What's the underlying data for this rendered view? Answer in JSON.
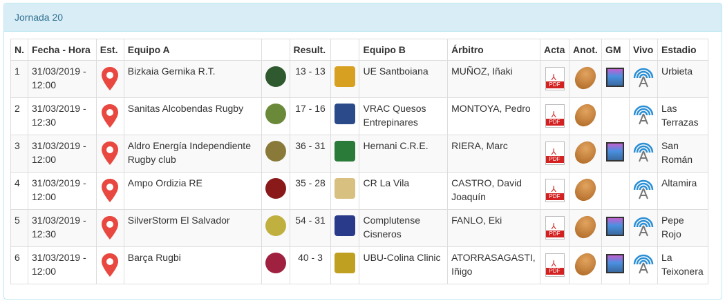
{
  "panel": {
    "title": "Jornada 20"
  },
  "headers": [
    "N.",
    "Fecha - Hora",
    "Est.",
    "Equipo A",
    "",
    "Result.",
    "",
    "Equipo B",
    "Árbitro",
    "Acta",
    "Anot.",
    "GM",
    "Vivo",
    "Estadio"
  ],
  "icons": {
    "pdf_label": "PDF",
    "estadio": "map-pin-icon",
    "acta": "pdf-icon",
    "anot": "rugby-ball-icon",
    "gm": "video-gallery-icon",
    "vivo": "live-broadcast-icon"
  },
  "colors": {
    "heading_bg": "#d9edf7",
    "heading_text": "#31708f",
    "pin": "#e8483f"
  },
  "rows": [
    {
      "n": "1",
      "fecha": "31/03/2019 - 12:00",
      "equipo_a": "Bizkaia Gernika R.T.",
      "result": "13 - 13",
      "equipo_b": "UE Santboiana",
      "arbitro": "MUÑOZ, Iñaki",
      "gm": true,
      "estadio": "Urbieta",
      "logo_a": "#2f5a2f",
      "logo_b": "#d8a020"
    },
    {
      "n": "2",
      "fecha": "31/03/2019 - 12:30",
      "equipo_a": "Sanitas Alcobendas Rugby",
      "result": "17 - 16",
      "equipo_b": "VRAC Quesos Entrepinares",
      "arbitro": "MONTOYA, Pedro",
      "gm": false,
      "estadio": "Las Terrazas",
      "logo_a": "#6a8a3a",
      "logo_b": "#2a4a8a"
    },
    {
      "n": "3",
      "fecha": "31/03/2019 - 12:00",
      "equipo_a": "Aldro Energía Independiente Rugby club",
      "result": "36 - 31",
      "equipo_b": "Hernani C.R.E.",
      "arbitro": "RIERA, Marc",
      "gm": true,
      "estadio": "San Román",
      "logo_a": "#8a7a3a",
      "logo_b": "#2a7a3a"
    },
    {
      "n": "4",
      "fecha": "31/03/2019 - 12:00",
      "equipo_a": "Ampo Ordizia RE",
      "result": "35 - 28",
      "equipo_b": "CR La Vila",
      "arbitro": "CASTRO, David Joaquín",
      "gm": false,
      "estadio": "Altamira",
      "logo_a": "#8a1a1a",
      "logo_b": "#d8c080"
    },
    {
      "n": "5",
      "fecha": "31/03/2019 - 12:30",
      "equipo_a": "SilverStorm El Salvador",
      "result": "54 - 31",
      "equipo_b": "Complutense Cisneros",
      "arbitro": "FANLO, Eki",
      "gm": true,
      "estadio": "Pepe Rojo",
      "logo_a": "#c0b040",
      "logo_b": "#2a3a8a"
    },
    {
      "n": "6",
      "fecha": "31/03/2019 - 12:00",
      "equipo_a": "Barça Rugbi",
      "result": "40 - 3",
      "equipo_b": "UBU-Colina Clinic",
      "arbitro": "ATORRASAGASTI, Iñigo",
      "gm": true,
      "estadio": "La Teixonera",
      "logo_a": "#a02040",
      "logo_b": "#c0a020"
    }
  ]
}
